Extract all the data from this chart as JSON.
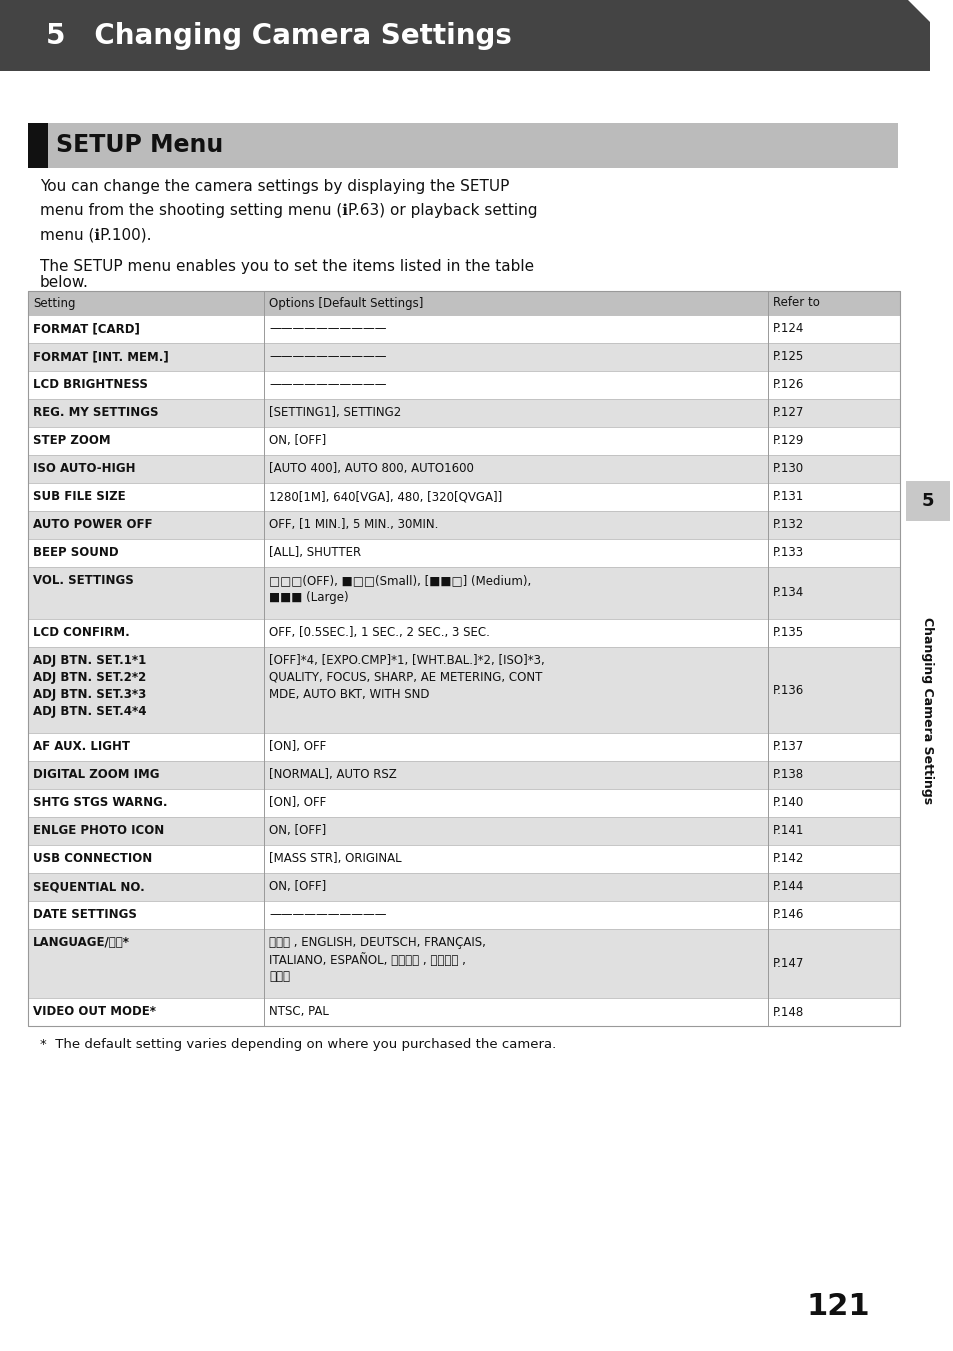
{
  "page_bg": "#ffffff",
  "header_bg": "#444444",
  "header_text": "5   Changing Camera Settings",
  "header_text_color": "#ffffff",
  "section_bg": "#bbbbbb",
  "section_bar_color": "#111111",
  "section_title": "SETUP Menu",
  "body_lines": [
    "You can change the camera settings by displaying the SETUP",
    "menu from the shooting setting menu (ℹP.63) or playback setting",
    "menu (ℹP.100).",
    "The SETUP menu enables you to set the items listed in the table",
    "below."
  ],
  "table_header_bg": "#c0c0c0",
  "table_row_bg_shade": "#e0e0e0",
  "table_row_bg_plain": "#ffffff",
  "col_headers": [
    "Setting",
    "Options [Default Settings]",
    "Refer to"
  ],
  "rows": [
    {
      "setting": "FORMAT [CARD]",
      "options": "——————————",
      "refer": "P.124",
      "shade": false,
      "opt_lines": 1,
      "set_lines": 1
    },
    {
      "setting": "FORMAT [INT. MEM.]",
      "options": "——————————",
      "refer": "P.125",
      "shade": true,
      "opt_lines": 1,
      "set_lines": 1
    },
    {
      "setting": "LCD BRIGHTNESS",
      "options": "——————————",
      "refer": "P.126",
      "shade": false,
      "opt_lines": 1,
      "set_lines": 1
    },
    {
      "setting": "REG. MY SETTINGS",
      "options": "[SETTING1], SETTING2",
      "refer": "P.127",
      "shade": true,
      "opt_lines": 1,
      "set_lines": 1
    },
    {
      "setting": "STEP ZOOM",
      "options": "ON, [OFF]",
      "refer": "P.129",
      "shade": false,
      "opt_lines": 1,
      "set_lines": 1
    },
    {
      "setting": "ISO AUTO-HIGH",
      "options": "[AUTO 400], AUTO 800, AUTO1600",
      "refer": "P.130",
      "shade": true,
      "opt_lines": 1,
      "set_lines": 1
    },
    {
      "setting": "SUB FILE SIZE",
      "options": "1280[1M], 640[VGA], 480, [320[QVGA]]",
      "refer": "P.131",
      "shade": false,
      "opt_lines": 1,
      "set_lines": 1
    },
    {
      "setting": "AUTO POWER OFF",
      "options": "OFF, [1 MIN.], 5 MIN., 30MIN.",
      "refer": "P.132",
      "shade": true,
      "opt_lines": 1,
      "set_lines": 1
    },
    {
      "setting": "BEEP SOUND",
      "options": "[ALL], SHUTTER",
      "refer": "P.133",
      "shade": false,
      "opt_lines": 1,
      "set_lines": 1
    },
    {
      "setting": "VOL. SETTINGS",
      "options": "□□□(OFF), ■□□(Small), [■■□] (Medium),\n■■■ (Large)",
      "refer": "P.134",
      "shade": true,
      "opt_lines": 2,
      "set_lines": 1
    },
    {
      "setting": "LCD CONFIRM.",
      "options": "OFF, [0.5SEC.], 1 SEC., 2 SEC., 3 SEC.",
      "refer": "P.135",
      "shade": false,
      "opt_lines": 1,
      "set_lines": 1
    },
    {
      "setting": "ADJ BTN. SET.1*1\nADJ BTN. SET.2*2\nADJ BTN. SET.3*3\nADJ BTN. SET.4*4",
      "options": "[OFF]*4, [EXPO.CMP]*1, [WHT.BAL.]*2, [ISO]*3,\nQUALITY, FOCUS, SHARP, AE METERING, CONT\nMDE, AUTO BKT, WITH SND",
      "refer": "P.136",
      "shade": true,
      "opt_lines": 3,
      "set_lines": 4
    },
    {
      "setting": "AF AUX. LIGHT",
      "options": "[ON], OFF",
      "refer": "P.137",
      "shade": false,
      "opt_lines": 1,
      "set_lines": 1
    },
    {
      "setting": "DIGITAL ZOOM IMG",
      "options": "[NORMAL], AUTO RSZ",
      "refer": "P.138",
      "shade": true,
      "opt_lines": 1,
      "set_lines": 1
    },
    {
      "setting": "SHTG STGS WARNG.",
      "options": "[ON], OFF",
      "refer": "P.140",
      "shade": false,
      "opt_lines": 1,
      "set_lines": 1
    },
    {
      "setting": "ENLGE PHOTO ICON",
      "options": "ON, [OFF]",
      "refer": "P.141",
      "shade": true,
      "opt_lines": 1,
      "set_lines": 1
    },
    {
      "setting": "USB CONNECTION",
      "options": "[MASS STR], ORIGINAL",
      "refer": "P.142",
      "shade": false,
      "opt_lines": 1,
      "set_lines": 1
    },
    {
      "setting": "SEQUENTIAL NO.",
      "options": "ON, [OFF]",
      "refer": "P.144",
      "shade": true,
      "opt_lines": 1,
      "set_lines": 1
    },
    {
      "setting": "DATE SETTINGS",
      "options": "——————————",
      "refer": "P.146",
      "shade": false,
      "opt_lines": 1,
      "set_lines": 1
    },
    {
      "setting": "LANGUAGE/言語*",
      "options": "日本語 , ENGLISH, DEUTSCH, FRANÇAIS,\nITALIANO, ESPAÑOL, 简体中文 , 繁体中文 ,\n한국어",
      "refer": "P.147",
      "shade": true,
      "opt_lines": 3,
      "set_lines": 1
    },
    {
      "setting": "VIDEO OUT MODE*",
      "options": "NTSC, PAL",
      "refer": "P.148",
      "shade": false,
      "opt_lines": 1,
      "set_lines": 1
    }
  ],
  "footnote": "*  The default setting varies depending on where you purchased the camera.",
  "page_number": "121",
  "sidebar_text": "Changing Camera Settings",
  "sidebar_num": "5"
}
